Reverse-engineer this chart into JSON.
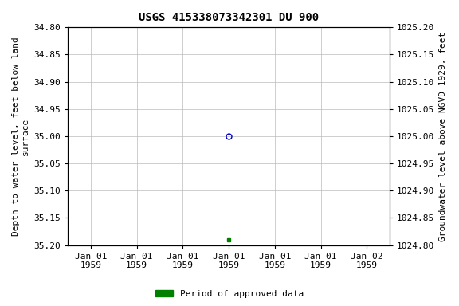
{
  "title": "USGS 415338073342301 DU 900",
  "xlabel_dates": [
    "Jan 01\n1959",
    "Jan 01\n1959",
    "Jan 01\n1959",
    "Jan 01\n1959",
    "Jan 01\n1959",
    "Jan 01\n1959",
    "Jan 02\n1959"
  ],
  "ylim_left_bottom": 35.2,
  "ylim_left_top": 34.8,
  "ylim_right_top": 1025.2,
  "ylim_right_bottom": 1024.8,
  "yticks_left": [
    34.8,
    34.85,
    34.9,
    34.95,
    35.0,
    35.05,
    35.1,
    35.15,
    35.2
  ],
  "yticks_right": [
    1025.2,
    1025.15,
    1025.1,
    1025.05,
    1025.0,
    1024.95,
    1024.9,
    1024.85,
    1024.8
  ],
  "ylabel_left": "Depth to water level, feet below land\nsurface",
  "ylabel_right": "Groundwater level above NGVD 1929, feet",
  "point_blue_x": 3.0,
  "point_blue_y": 35.0,
  "point_green_x": 3.0,
  "point_green_y": 35.19,
  "legend_label": "Period of approved data",
  "bg_color": "#ffffff",
  "grid_color": "#bbbbbb",
  "point_blue_color": "#0000cc",
  "point_green_color": "#008000",
  "title_fontsize": 10,
  "axis_fontsize": 8,
  "tick_fontsize": 8,
  "xtick_positions": [
    0,
    1,
    2,
    3,
    4,
    5,
    6
  ],
  "xlim": [
    -0.5,
    6.5
  ]
}
